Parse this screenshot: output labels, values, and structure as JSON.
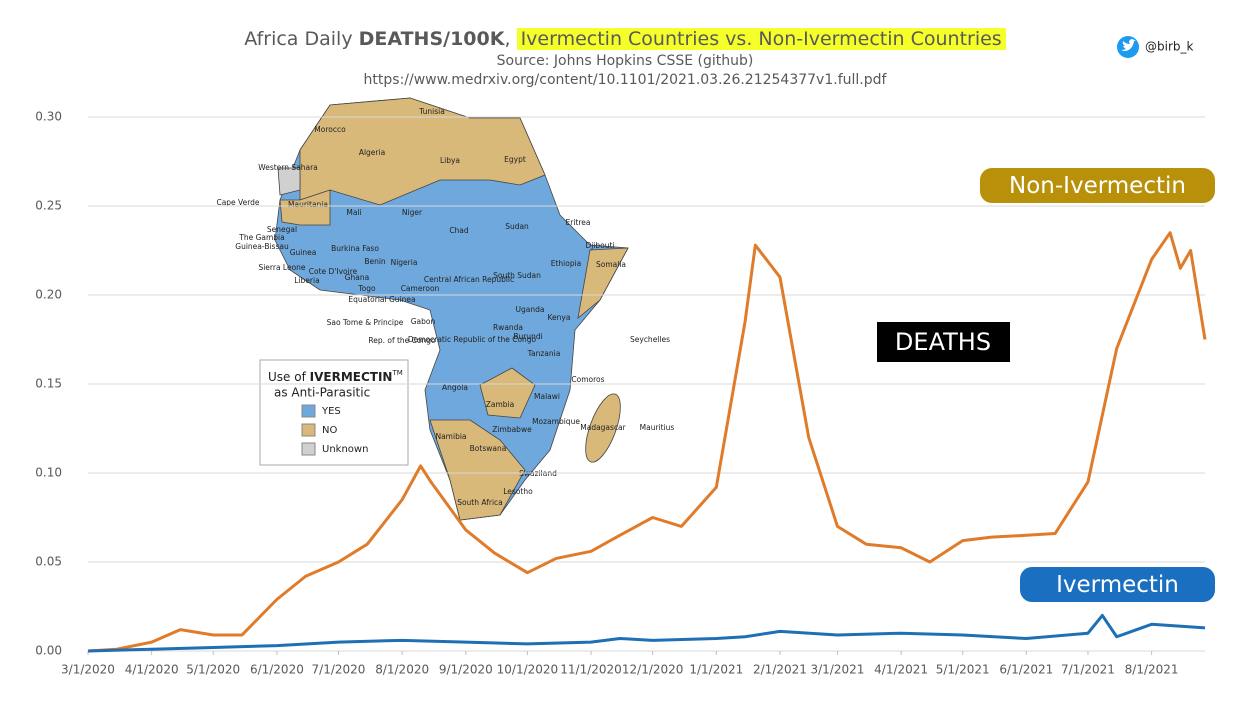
{
  "header": {
    "title_parts": [
      "Africa Daily ",
      "DEATHS/100K",
      ", ",
      "Ivermectin Countries vs. Non-Ivermectin Countries"
    ],
    "source": "Source: Johns Hopkins CSSE (github)",
    "url": "https://www.medrxiv.org/content/10.1101/2021.03.26.21254377v1.full.pdf",
    "handle": "@birb_k"
  },
  "chart_data": {
    "type": "line",
    "annotation": "DEATHS",
    "xlim": [
      "3/1/2020",
      "8/27/2021"
    ],
    "xticks": [
      "3/1/2020",
      "4/1/2020",
      "5/1/2020",
      "6/1/2020",
      "7/1/2020",
      "8/1/2020",
      "9/1/2020",
      "10/1/2020",
      "11/1/2020",
      "12/1/2020",
      "1/1/2021",
      "2/1/2021",
      "3/1/2021",
      "4/1/2021",
      "5/1/2021",
      "6/1/2021",
      "7/1/2021",
      "8/1/2021"
    ],
    "ylim": [
      0,
      0.3
    ],
    "yticks": [
      {
        "value": 0,
        "label": "0.00"
      },
      {
        "value": 0.05,
        "label": "0.05"
      },
      {
        "value": 0.1,
        "label": "0.10"
      },
      {
        "value": 0.15,
        "label": "0.15"
      },
      {
        "value": 0.2,
        "label": "0.20"
      },
      {
        "value": 0.25,
        "label": "0.25"
      },
      {
        "value": 0.3,
        "label": "0.30"
      }
    ],
    "grid": true,
    "series": [
      {
        "name": "Non-Ivermectin",
        "color": "#e07b2a",
        "label_color": "#b8900a",
        "x": [
          "3/1/2020",
          "3/15/2020",
          "4/1/2020",
          "4/15/2020",
          "5/1/2020",
          "5/15/2020",
          "6/1/2020",
          "6/15/2020",
          "7/1/2020",
          "7/15/2020",
          "8/1/2020",
          "8/10/2020",
          "8/15/2020",
          "9/1/2020",
          "9/15/2020",
          "10/1/2020",
          "10/15/2020",
          "11/1/2020",
          "11/15/2020",
          "12/1/2020",
          "12/15/2020",
          "1/1/2021",
          "1/15/2021",
          "1/20/2021",
          "2/1/2021",
          "2/15/2021",
          "3/1/2021",
          "3/15/2021",
          "4/1/2021",
          "4/15/2021",
          "5/1/2021",
          "5/15/2021",
          "6/1/2021",
          "6/15/2021",
          "7/1/2021",
          "7/15/2021",
          "8/1/2021",
          "8/10/2021",
          "8/15/2021",
          "8/20/2021",
          "8/27/2021"
        ],
        "values": [
          0,
          0.001,
          0.005,
          0.012,
          0.009,
          0.009,
          0.029,
          0.042,
          0.05,
          0.06,
          0.085,
          0.104,
          0.095,
          0.068,
          0.055,
          0.044,
          0.052,
          0.056,
          0.065,
          0.075,
          0.07,
          0.092,
          0.185,
          0.228,
          0.21,
          0.12,
          0.07,
          0.06,
          0.058,
          0.05,
          0.062,
          0.064,
          0.065,
          0.066,
          0.095,
          0.17,
          0.22,
          0.235,
          0.215,
          0.225,
          0.175
        ]
      },
      {
        "name": "Ivermectin",
        "color": "#1f6fb5",
        "label_color": "#1a6fc0",
        "x": [
          "3/1/2020",
          "4/1/2020",
          "5/1/2020",
          "6/1/2020",
          "7/1/2020",
          "8/1/2020",
          "9/1/2020",
          "10/1/2020",
          "11/1/2020",
          "11/15/2020",
          "12/1/2020",
          "1/1/2021",
          "1/15/2021",
          "2/1/2021",
          "3/1/2021",
          "4/1/2021",
          "5/1/2021",
          "6/1/2021",
          "7/1/2021",
          "7/8/2021",
          "7/15/2021",
          "8/1/2021",
          "8/27/2021"
        ],
        "values": [
          0,
          0.001,
          0.002,
          0.003,
          0.005,
          0.006,
          0.005,
          0.004,
          0.005,
          0.007,
          0.006,
          0.007,
          0.008,
          0.011,
          0.009,
          0.01,
          0.009,
          0.007,
          0.01,
          0.02,
          0.008,
          0.015,
          0.013
        ]
      }
    ]
  },
  "map_inset": {
    "legend_title_parts": [
      "Use of ",
      "IVERMECTIN",
      "TM",
      "as Anti-Parasitic"
    ],
    "legend_items": [
      {
        "label": "YES",
        "color": "#6fa8dc"
      },
      {
        "label": "NO",
        "color": "#d9b97a"
      },
      {
        "label": "Unknown",
        "color": "#d0d0d0"
      }
    ],
    "labels": [
      "Tunisia",
      "Morocco",
      "Algeria",
      "Libya",
      "Egypt",
      "Western Sahara",
      "Mauritania",
      "Mali",
      "Niger",
      "Chad",
      "Sudan",
      "Eritrea",
      "Djibouti",
      "Cape Verde",
      "Senegal",
      "The Gambia",
      "Guinea-Bissau",
      "Guinea",
      "Burkina Faso",
      "Benin",
      "Nigeria",
      "Sierra Leone",
      "Cote D'Ivoire",
      "Ghana",
      "Liberia",
      "Togo",
      "Cameroon",
      "Central African Republic",
      "South Sudan",
      "Ethiopia",
      "Somalia",
      "Equatorial Guinea",
      "Sao Tome & Principe",
      "Gabon",
      "Uganda",
      "Kenya",
      "Rwanda",
      "Burundi",
      "Democratic Republic of the Congo",
      "Rep. of the Congo",
      "Tanzania",
      "Seychelles",
      "Comoros",
      "Angola",
      "Malawi",
      "Zambia",
      "Mozambique",
      "Madagascar",
      "Mauritius",
      "Namibia",
      "Zimbabwe",
      "Botswana",
      "Swaziland",
      "South Africa",
      "Lesotho"
    ]
  }
}
